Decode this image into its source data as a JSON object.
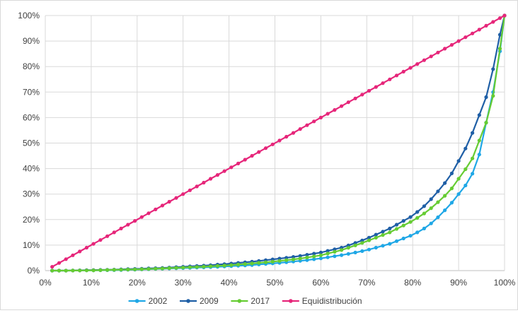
{
  "chart_data": {
    "type": "line",
    "title": "",
    "xlabel": "",
    "ylabel": "",
    "xlim": [
      0,
      100
    ],
    "ylim": [
      0,
      100
    ],
    "x_ticks": [
      "0%",
      "10%",
      "20%",
      "30%",
      "40%",
      "50%",
      "60%",
      "70%",
      "80%",
      "90%",
      "100%"
    ],
    "y_ticks": [
      "0%",
      "10%",
      "20%",
      "30%",
      "40%",
      "50%",
      "60%",
      "70%",
      "80%",
      "90%",
      "100%"
    ],
    "grid": true,
    "legend_position": "bottom",
    "series": [
      {
        "name": "2002",
        "color": "#1fa7e6",
        "points": [
          [
            1.5,
            0
          ],
          [
            5,
            0
          ],
          [
            10,
            0.1
          ],
          [
            15,
            0.2
          ],
          [
            20,
            0.4
          ],
          [
            25,
            0.7
          ],
          [
            30,
            1.0
          ],
          [
            35,
            1.3
          ],
          [
            40,
            1.7
          ],
          [
            45,
            2.2
          ],
          [
            50,
            2.9
          ],
          [
            55,
            3.7
          ],
          [
            60,
            4.8
          ],
          [
            65,
            6.2
          ],
          [
            70,
            8.0
          ],
          [
            75,
            10.5
          ],
          [
            80,
            14.0
          ],
          [
            83,
            17.0
          ],
          [
            85,
            20.0
          ],
          [
            88,
            25.5
          ],
          [
            90,
            30.0
          ],
          [
            92,
            34.5
          ],
          [
            93,
            38.0
          ],
          [
            94,
            41.0
          ],
          [
            95,
            50.0
          ],
          [
            96,
            58.0
          ],
          [
            97,
            65.0
          ],
          [
            98,
            75.0
          ],
          [
            99,
            86.0
          ],
          [
            100,
            100
          ]
        ]
      },
      {
        "name": "2009",
        "color": "#1f5fa6",
        "points": [
          [
            1.5,
            0
          ],
          [
            5,
            0
          ],
          [
            10,
            0.2
          ],
          [
            15,
            0.4
          ],
          [
            20,
            0.7
          ],
          [
            25,
            1.0
          ],
          [
            30,
            1.5
          ],
          [
            35,
            2.0
          ],
          [
            40,
            2.7
          ],
          [
            45,
            3.5
          ],
          [
            50,
            4.5
          ],
          [
            55,
            5.6
          ],
          [
            60,
            7.1
          ],
          [
            65,
            9.2
          ],
          [
            70,
            12.5
          ],
          [
            75,
            16.5
          ],
          [
            80,
            21.5
          ],
          [
            83,
            26.0
          ],
          [
            85,
            30.0
          ],
          [
            88,
            36.5
          ],
          [
            90,
            43.0
          ],
          [
            92,
            49.5
          ],
          [
            93,
            54.0
          ],
          [
            94,
            58.0
          ],
          [
            95,
            64.0
          ],
          [
            96,
            68.0
          ],
          [
            97,
            73.0
          ],
          [
            98,
            85.0
          ],
          [
            100,
            100
          ]
        ]
      },
      {
        "name": "2017",
        "color": "#66cc33",
        "points": [
          [
            1.5,
            0
          ],
          [
            5,
            0
          ],
          [
            10,
            0.1
          ],
          [
            15,
            0.3
          ],
          [
            20,
            0.5
          ],
          [
            25,
            0.8
          ],
          [
            30,
            1.2
          ],
          [
            35,
            1.6
          ],
          [
            40,
            2.1
          ],
          [
            45,
            2.8
          ],
          [
            50,
            3.6
          ],
          [
            55,
            4.6
          ],
          [
            60,
            6.0
          ],
          [
            65,
            8.3
          ],
          [
            70,
            11.5
          ],
          [
            75,
            15.0
          ],
          [
            80,
            19.5
          ],
          [
            83,
            23.0
          ],
          [
            85,
            26.0
          ],
          [
            88,
            31.0
          ],
          [
            90,
            36.0
          ],
          [
            92,
            41.0
          ],
          [
            93,
            44.0
          ],
          [
            94,
            48.0
          ],
          [
            95,
            54.0
          ],
          [
            96,
            58.0
          ],
          [
            97,
            63.0
          ],
          [
            98,
            74.0
          ],
          [
            100,
            100
          ]
        ]
      },
      {
        "name": "Equidistribución",
        "color": "#e6267a",
        "points": [
          [
            1.5,
            1.5
          ],
          [
            100,
            100
          ]
        ]
      }
    ]
  }
}
